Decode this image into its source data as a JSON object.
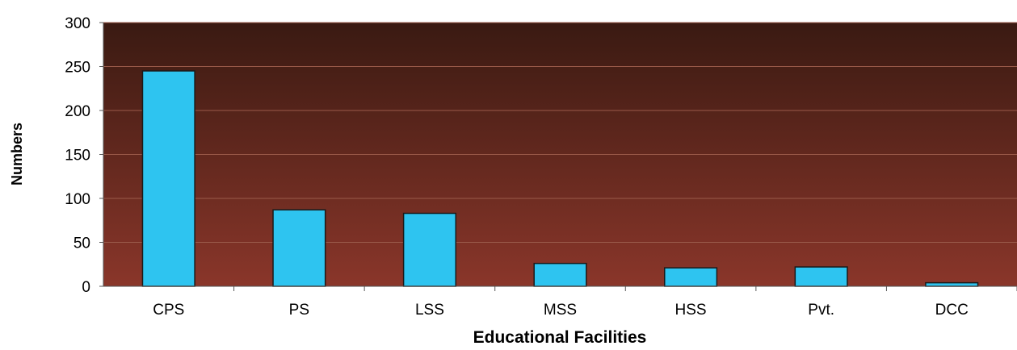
{
  "chart_data": {
    "type": "bar",
    "title": "",
    "xlabel": "Educational Facilities",
    "ylabel": "Numbers",
    "categories": [
      "CPS",
      "PS",
      "LSS",
      "MSS",
      "HSS",
      "Pvt.",
      "DCC"
    ],
    "values": [
      245,
      87,
      83,
      26,
      21,
      22,
      4
    ],
    "ylim": [
      0,
      300
    ],
    "yticks": [
      0,
      50,
      100,
      150,
      200,
      250,
      300
    ],
    "grid": true,
    "legend": "none",
    "colors": {
      "bar": "#2EC4F0",
      "bar_outline": "#1A1A1A",
      "plot_top": "#3A1A12",
      "plot_bottom": "#8A362A",
      "gridline": "#9A5A4A"
    }
  }
}
